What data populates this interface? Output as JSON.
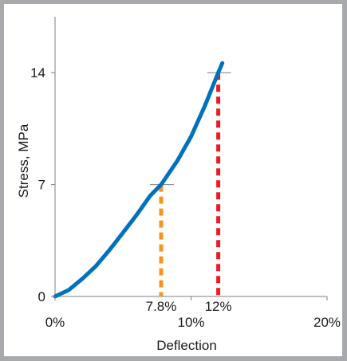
{
  "chart_data": {
    "type": "line",
    "xlabel": "Deflection",
    "ylabel": "Stress, MPa",
    "xlim": [
      0,
      20
    ],
    "ylim": [
      0,
      17.5
    ],
    "x_ticks": [
      {
        "value": 0,
        "label": "0%"
      },
      {
        "value": 10,
        "label": "10%"
      },
      {
        "value": 20,
        "label": "20%"
      }
    ],
    "y_ticks": [
      {
        "value": 0,
        "label": "0"
      },
      {
        "value": 7,
        "label": "7"
      },
      {
        "value": 14,
        "label": "14"
      }
    ],
    "grid": false,
    "series": [
      {
        "color": "#0072bc",
        "x": [
          0,
          1,
          2,
          3,
          4,
          5,
          6,
          7,
          7.8,
          9,
          10,
          11,
          12,
          12.3
        ],
        "y": [
          0,
          0.4,
          1.1,
          1.9,
          2.9,
          4.0,
          5.1,
          6.3,
          7.0,
          8.5,
          10.0,
          11.9,
          14.0,
          14.6
        ]
      }
    ],
    "markers": [
      {
        "x": 7.8,
        "y": 7,
        "label": "7.8%",
        "color": "#f7941d"
      },
      {
        "x": 12,
        "y": 14,
        "label": "12%",
        "color": "#ed1c24"
      }
    ]
  }
}
